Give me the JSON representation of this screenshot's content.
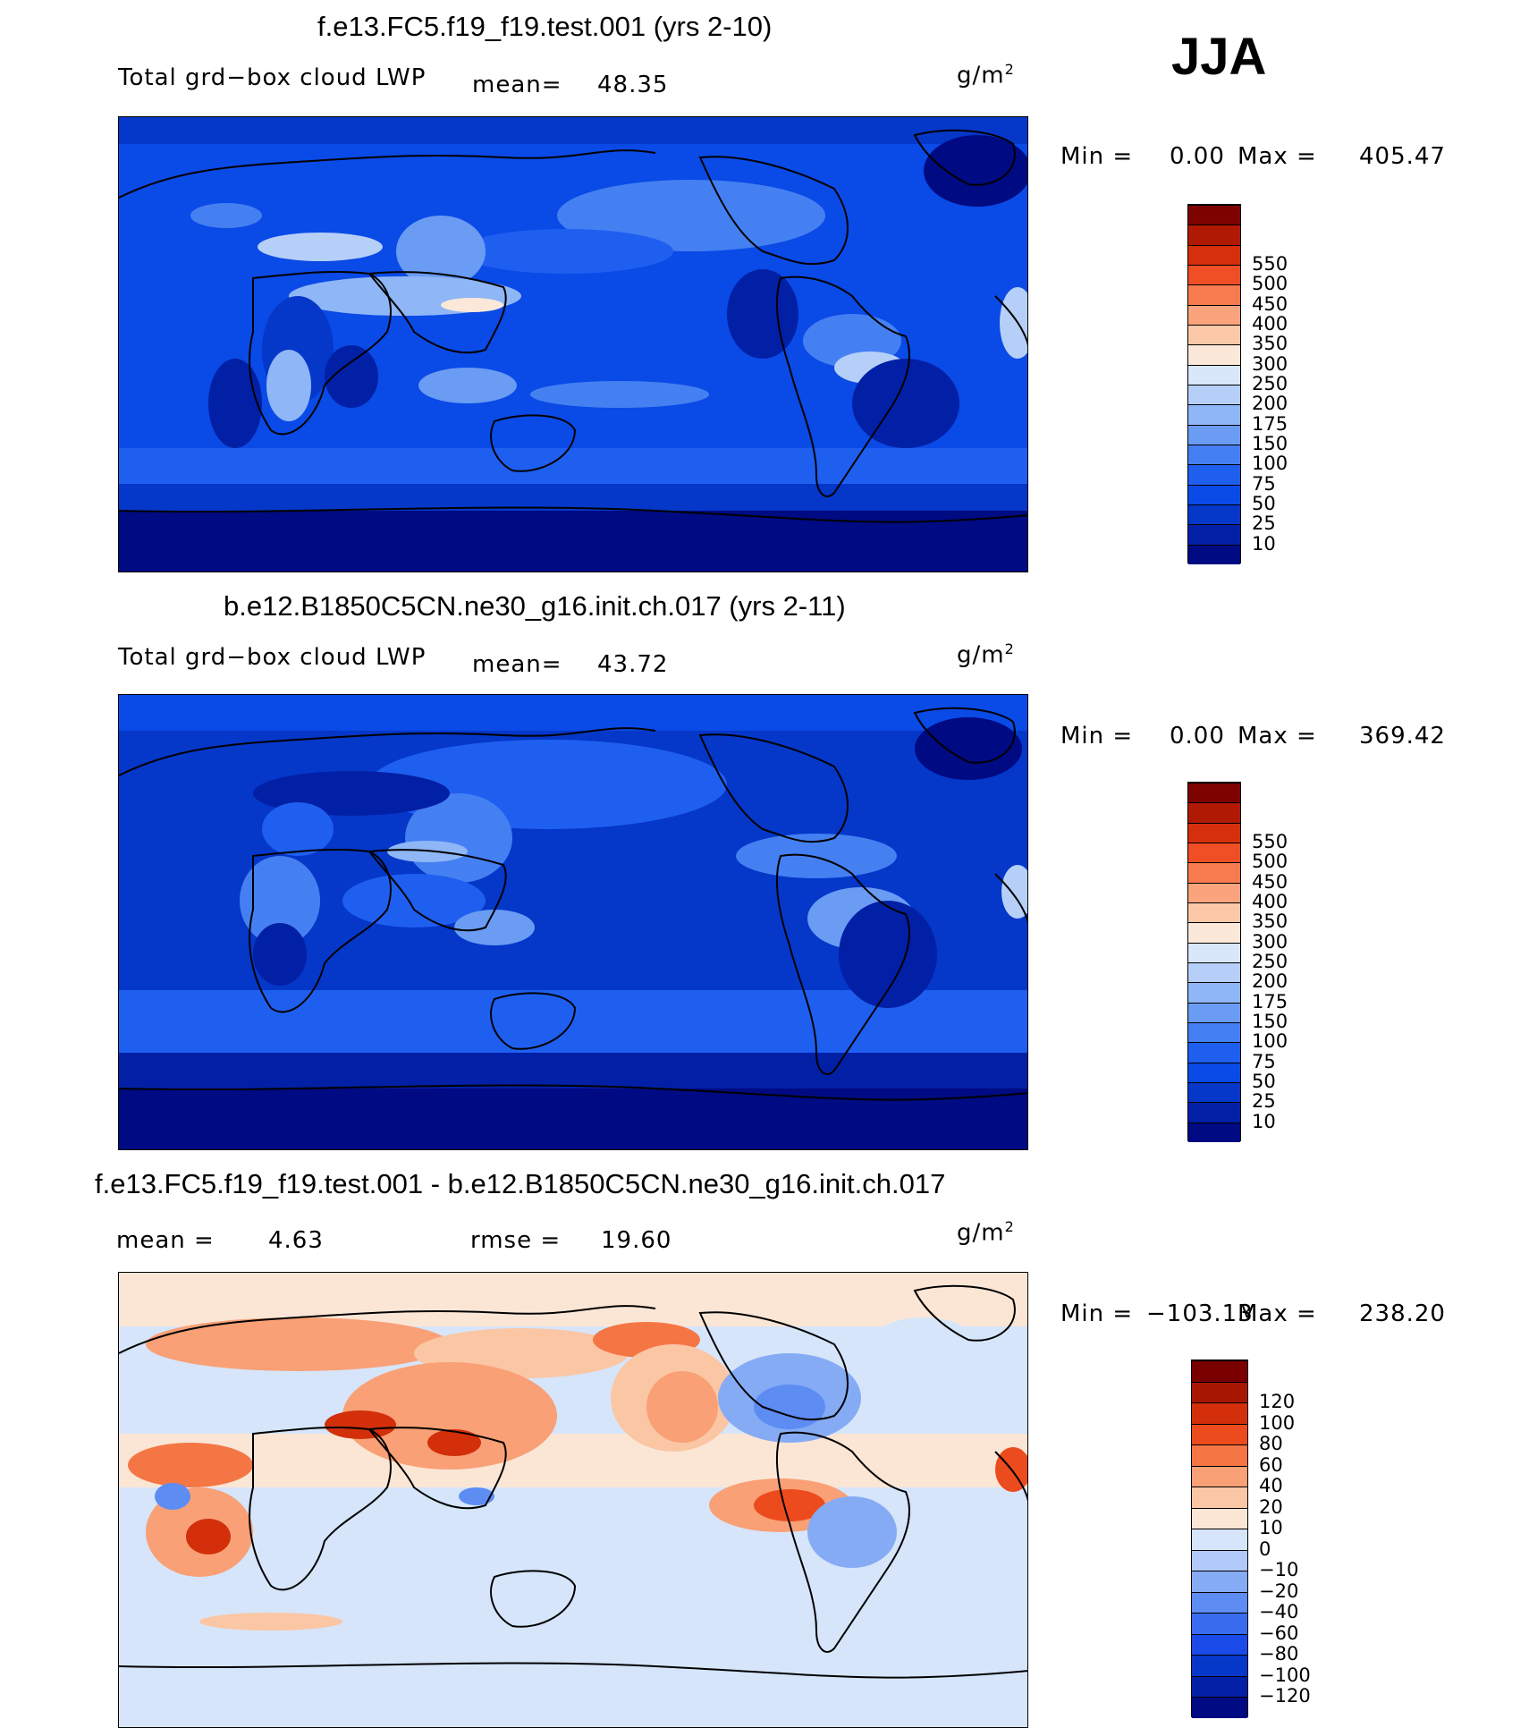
{
  "season": "JJA",
  "panels": [
    {
      "title": "f.e13.FC5.f19_f19.test.001 (yrs 2-10)",
      "left_label": "Total grd−box cloud LWP",
      "mean_label": "mean=",
      "mean_value": "48.35",
      "units_base": "g/m",
      "units_exp": "2",
      "min_label": "Min  =",
      "min_value": "0.00",
      "max_label": "Max  =",
      "max_value": "405.47",
      "colorbar": {
        "colors": [
          "#000a82",
          "#0220a6",
          "#0537c9",
          "#0a4ae6",
          "#1f5ff0",
          "#4580f2",
          "#6a9cf4",
          "#8fb6f6",
          "#b5cff8",
          "#d8e7fa",
          "#fbe8d8",
          "#fbc9a8",
          "#f9a47c",
          "#f77b4f",
          "#f04e24",
          "#d62f0d",
          "#b01a05",
          "#7d0300"
        ],
        "labels": [
          "10",
          "25",
          "50",
          "75",
          "100",
          "150",
          "175",
          "200",
          "250",
          "300",
          "350",
          "400",
          "450",
          "500",
          "550"
        ]
      }
    },
    {
      "title": "b.e12.B1850C5CN.ne30_g16.init.ch.017 (yrs 2-11)",
      "left_label": "Total grd−box cloud LWP",
      "mean_label": "mean=",
      "mean_value": "43.72",
      "units_base": "g/m",
      "units_exp": "2",
      "min_label": "Min  =",
      "min_value": "0.00",
      "max_label": "Max  =",
      "max_value": "369.42",
      "colorbar": {
        "colors": [
          "#000a82",
          "#0220a6",
          "#0537c9",
          "#0a4ae6",
          "#1f5ff0",
          "#4580f2",
          "#6a9cf4",
          "#8fb6f6",
          "#b5cff8",
          "#d8e7fa",
          "#fbe8d8",
          "#fbc9a8",
          "#f9a47c",
          "#f77b4f",
          "#f04e24",
          "#d62f0d",
          "#b01a05",
          "#7d0300"
        ],
        "labels": [
          "10",
          "25",
          "50",
          "75",
          "100",
          "150",
          "175",
          "200",
          "250",
          "300",
          "350",
          "400",
          "450",
          "500",
          "550"
        ]
      }
    },
    {
      "title": "f.e13.FC5.f19_f19.test.001 - b.e12.B1850C5CN.ne30_g16.init.ch.017",
      "mean_label": "mean  =",
      "mean_value": "4.63",
      "rmse_label": "rmse  =",
      "rmse_value": "19.60",
      "units_base": "g/m",
      "units_exp": "2",
      "min_label": "Min  =",
      "min_value": "−103.13",
      "max_label": "Max  =",
      "max_value": "238.20",
      "colorbar": {
        "colors": [
          "#000a82",
          "#0220a6",
          "#0537c9",
          "#1a4be8",
          "#3a6cf0",
          "#5d8cf3",
          "#86abf5",
          "#b0c9f8",
          "#d6e5fa",
          "#fbe6d6",
          "#fbc6a4",
          "#f9a076",
          "#f57645",
          "#ec4b1d",
          "#d22f0a",
          "#a81702",
          "#7a0000"
        ],
        "labels": [
          "−120",
          "−100",
          "−80",
          "−60",
          "−40",
          "−20",
          "−10",
          "0",
          "10",
          "20",
          "40",
          "60",
          "80",
          "100",
          "120"
        ]
      }
    }
  ]
}
